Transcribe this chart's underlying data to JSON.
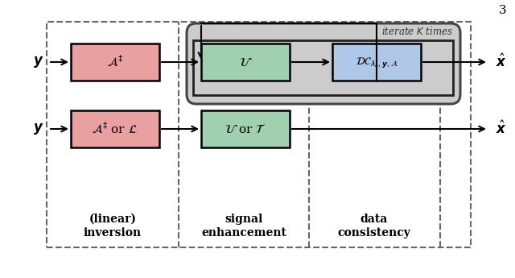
{
  "fig_width": 6.4,
  "fig_height": 3.45,
  "dpi": 100,
  "background": "#ffffff",
  "pink_box_color": "#e8a0a0",
  "pink_box_edge": "#000000",
  "green_box_color": "#a0d0b0",
  "green_box_edge": "#000000",
  "blue_box_color": "#b0c8e8",
  "blue_box_edge": "#000000",
  "gray_rounded_color": "#cccccc",
  "gray_rounded_edge": "#444444",
  "dashed_box_edge": "#666666",
  "arrow_color": "#000000",
  "text_color": "#000000",
  "label_linear_inversion": "(linear)\ninversion",
  "label_signal_enhancement": "signal\nenhancement",
  "label_data_consistency": "data\nconsistency",
  "label_iterate": "iterate $K$ times",
  "page_number": "3"
}
